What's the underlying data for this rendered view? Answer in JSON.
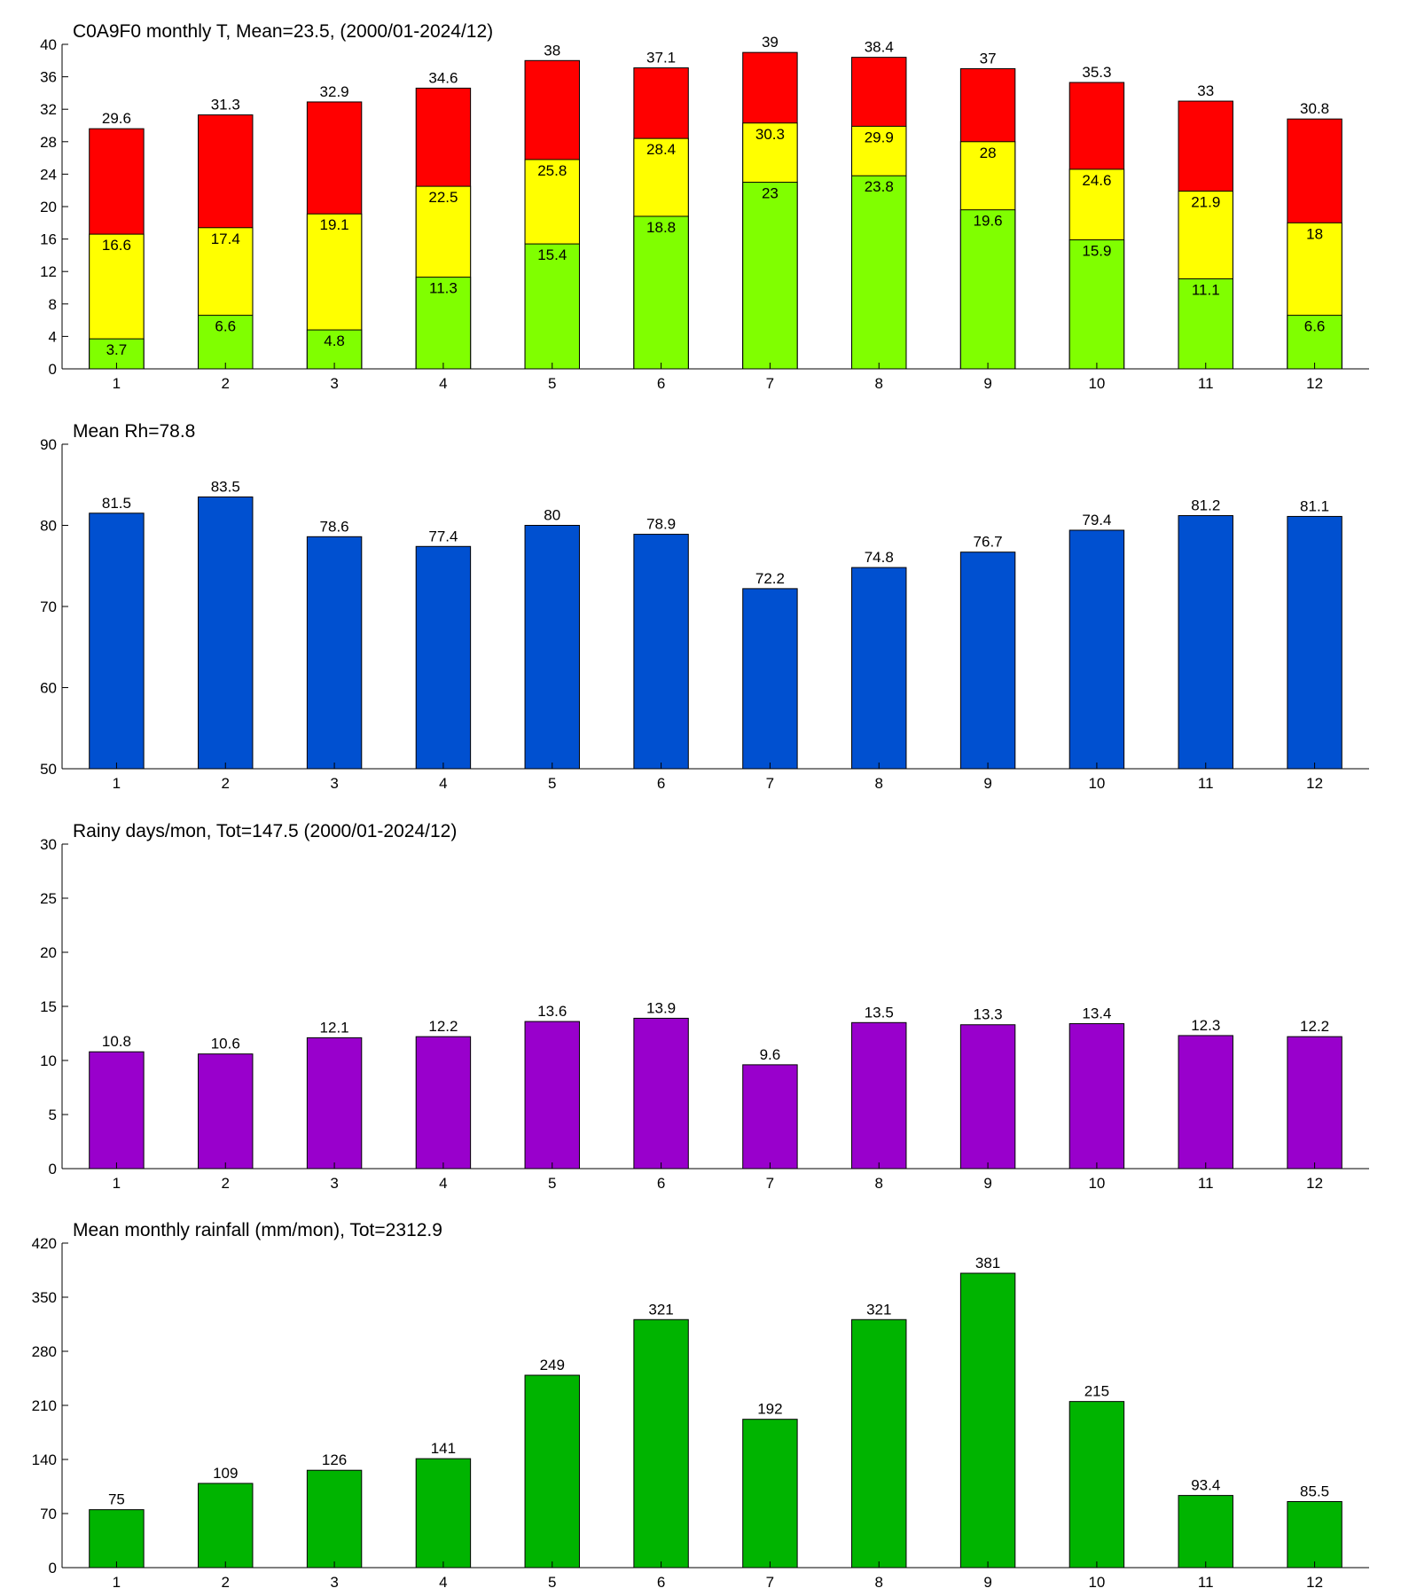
{
  "chart_data": [
    {
      "type": "bar",
      "title": "C0A9F0 monthly T, Mean=23.5, (2000/01-2024/12)",
      "categories": [
        "1",
        "2",
        "3",
        "4",
        "5",
        "6",
        "7",
        "8",
        "9",
        "10",
        "11",
        "12"
      ],
      "series": [
        {
          "color": "#ff0000",
          "values": [
            29.6,
            31.3,
            32.9,
            34.6,
            38,
            37.1,
            39,
            38.4,
            37,
            35.3,
            33,
            30.8
          ]
        },
        {
          "color": "#ffff00",
          "values": [
            16.6,
            17.4,
            19.1,
            22.5,
            25.8,
            28.4,
            30.3,
            29.9,
            28,
            24.6,
            21.9,
            18
          ]
        },
        {
          "color": "#80ff00",
          "values": [
            3.7,
            6.6,
            4.8,
            11.3,
            15.4,
            18.8,
            23,
            23.8,
            19.6,
            15.9,
            11.1,
            6.6
          ]
        }
      ],
      "ylim": [
        0,
        40
      ],
      "yticks": [
        0,
        4,
        8,
        12,
        16,
        20,
        24,
        28,
        32,
        36,
        40
      ]
    },
    {
      "type": "bar",
      "title": "Mean Rh=78.8",
      "categories": [
        "1",
        "2",
        "3",
        "4",
        "5",
        "6",
        "7",
        "8",
        "9",
        "10",
        "11",
        "12"
      ],
      "series": [
        {
          "color": "#0050d0",
          "values": [
            81.5,
            83.5,
            78.6,
            77.4,
            80,
            78.9,
            72.2,
            74.8,
            76.7,
            79.4,
            81.2,
            81.1
          ]
        }
      ],
      "ylim": [
        50,
        90
      ],
      "yticks": [
        50,
        60,
        70,
        80,
        90
      ]
    },
    {
      "type": "bar",
      "title": "Rainy days/mon, Tot=147.5 (2000/01-2024/12)",
      "categories": [
        "1",
        "2",
        "3",
        "4",
        "5",
        "6",
        "7",
        "8",
        "9",
        "10",
        "11",
        "12"
      ],
      "series": [
        {
          "color": "#9900cc",
          "values": [
            10.8,
            10.6,
            12.1,
            12.2,
            13.6,
            13.9,
            9.6,
            13.5,
            13.3,
            13.4,
            12.3,
            12.2
          ]
        }
      ],
      "ylim": [
        0,
        30
      ],
      "yticks": [
        0,
        5,
        10,
        15,
        20,
        25,
        30
      ]
    },
    {
      "type": "bar",
      "title": "Mean monthly rainfall (mm/mon), Tot=2312.9",
      "categories": [
        "1",
        "2",
        "3",
        "4",
        "5",
        "6",
        "7",
        "8",
        "9",
        "10",
        "11",
        "12"
      ],
      "series": [
        {
          "color": "#00b400",
          "values": [
            75,
            109,
            126,
            141,
            249,
            321,
            192,
            321,
            381,
            215,
            93.4,
            85.5
          ]
        }
      ],
      "ylim": [
        0,
        420
      ],
      "yticks": [
        0,
        70,
        140,
        210,
        280,
        350,
        420
      ]
    }
  ]
}
